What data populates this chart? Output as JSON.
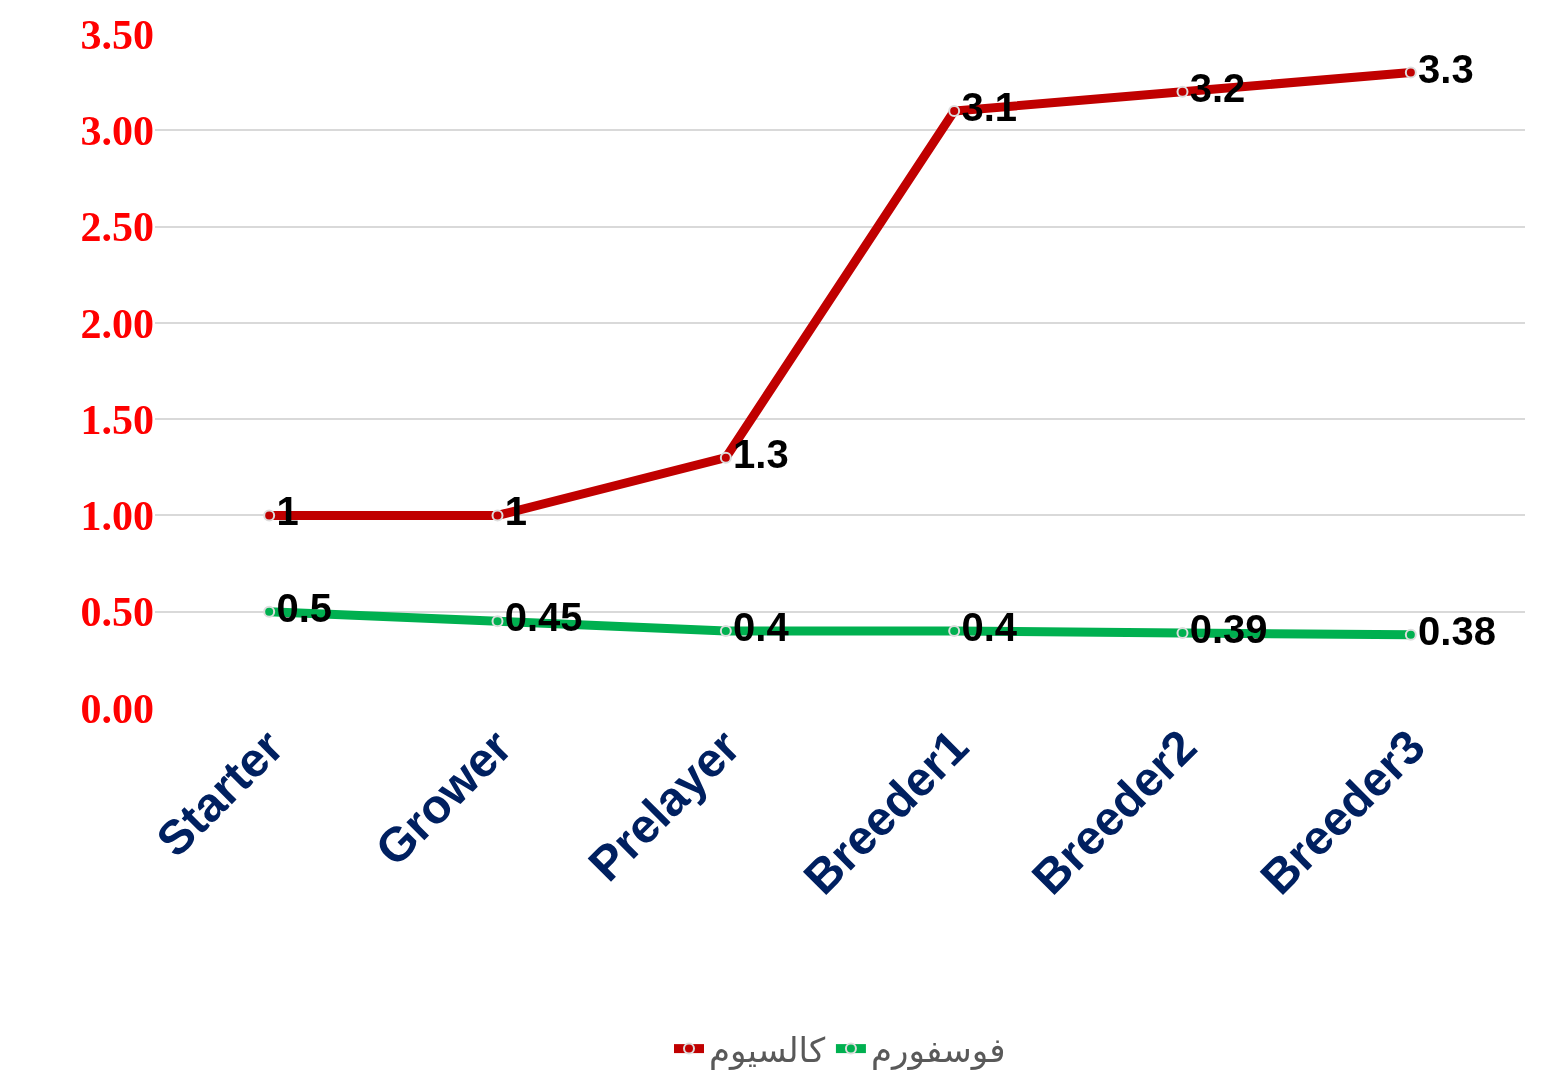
{
  "chart_data": {
    "type": "line",
    "categories": [
      "Starter",
      "Grower",
      "Prelayer",
      "Breeder1",
      "Breeder2",
      "Breeder3"
    ],
    "series": [
      {
        "name": "كالسيوم",
        "color": "#c00000",
        "values": [
          1,
          1,
          1.3,
          3.1,
          3.2,
          3.3
        ]
      },
      {
        "name": "فوسفورم",
        "color": "#00b050",
        "values": [
          0.5,
          0.45,
          0.4,
          0.4,
          0.39,
          0.38
        ]
      }
    ],
    "ylim": [
      0,
      3.5
    ],
    "yticks": [
      {
        "value": 0,
        "label": "0.00"
      },
      {
        "value": 0.5,
        "label": "0.50"
      },
      {
        "value": 1,
        "label": "1.00"
      },
      {
        "value": 1.5,
        "label": "1.50"
      },
      {
        "value": 2,
        "label": "2.00"
      },
      {
        "value": 2.5,
        "label": "2.50"
      },
      {
        "value": 3,
        "label": "3.00"
      },
      {
        "value": 3.5,
        "label": "3.50"
      }
    ],
    "grid": "y",
    "legend": "bottom",
    "marker": "circle",
    "line_style": "solid",
    "data_labels": true
  }
}
